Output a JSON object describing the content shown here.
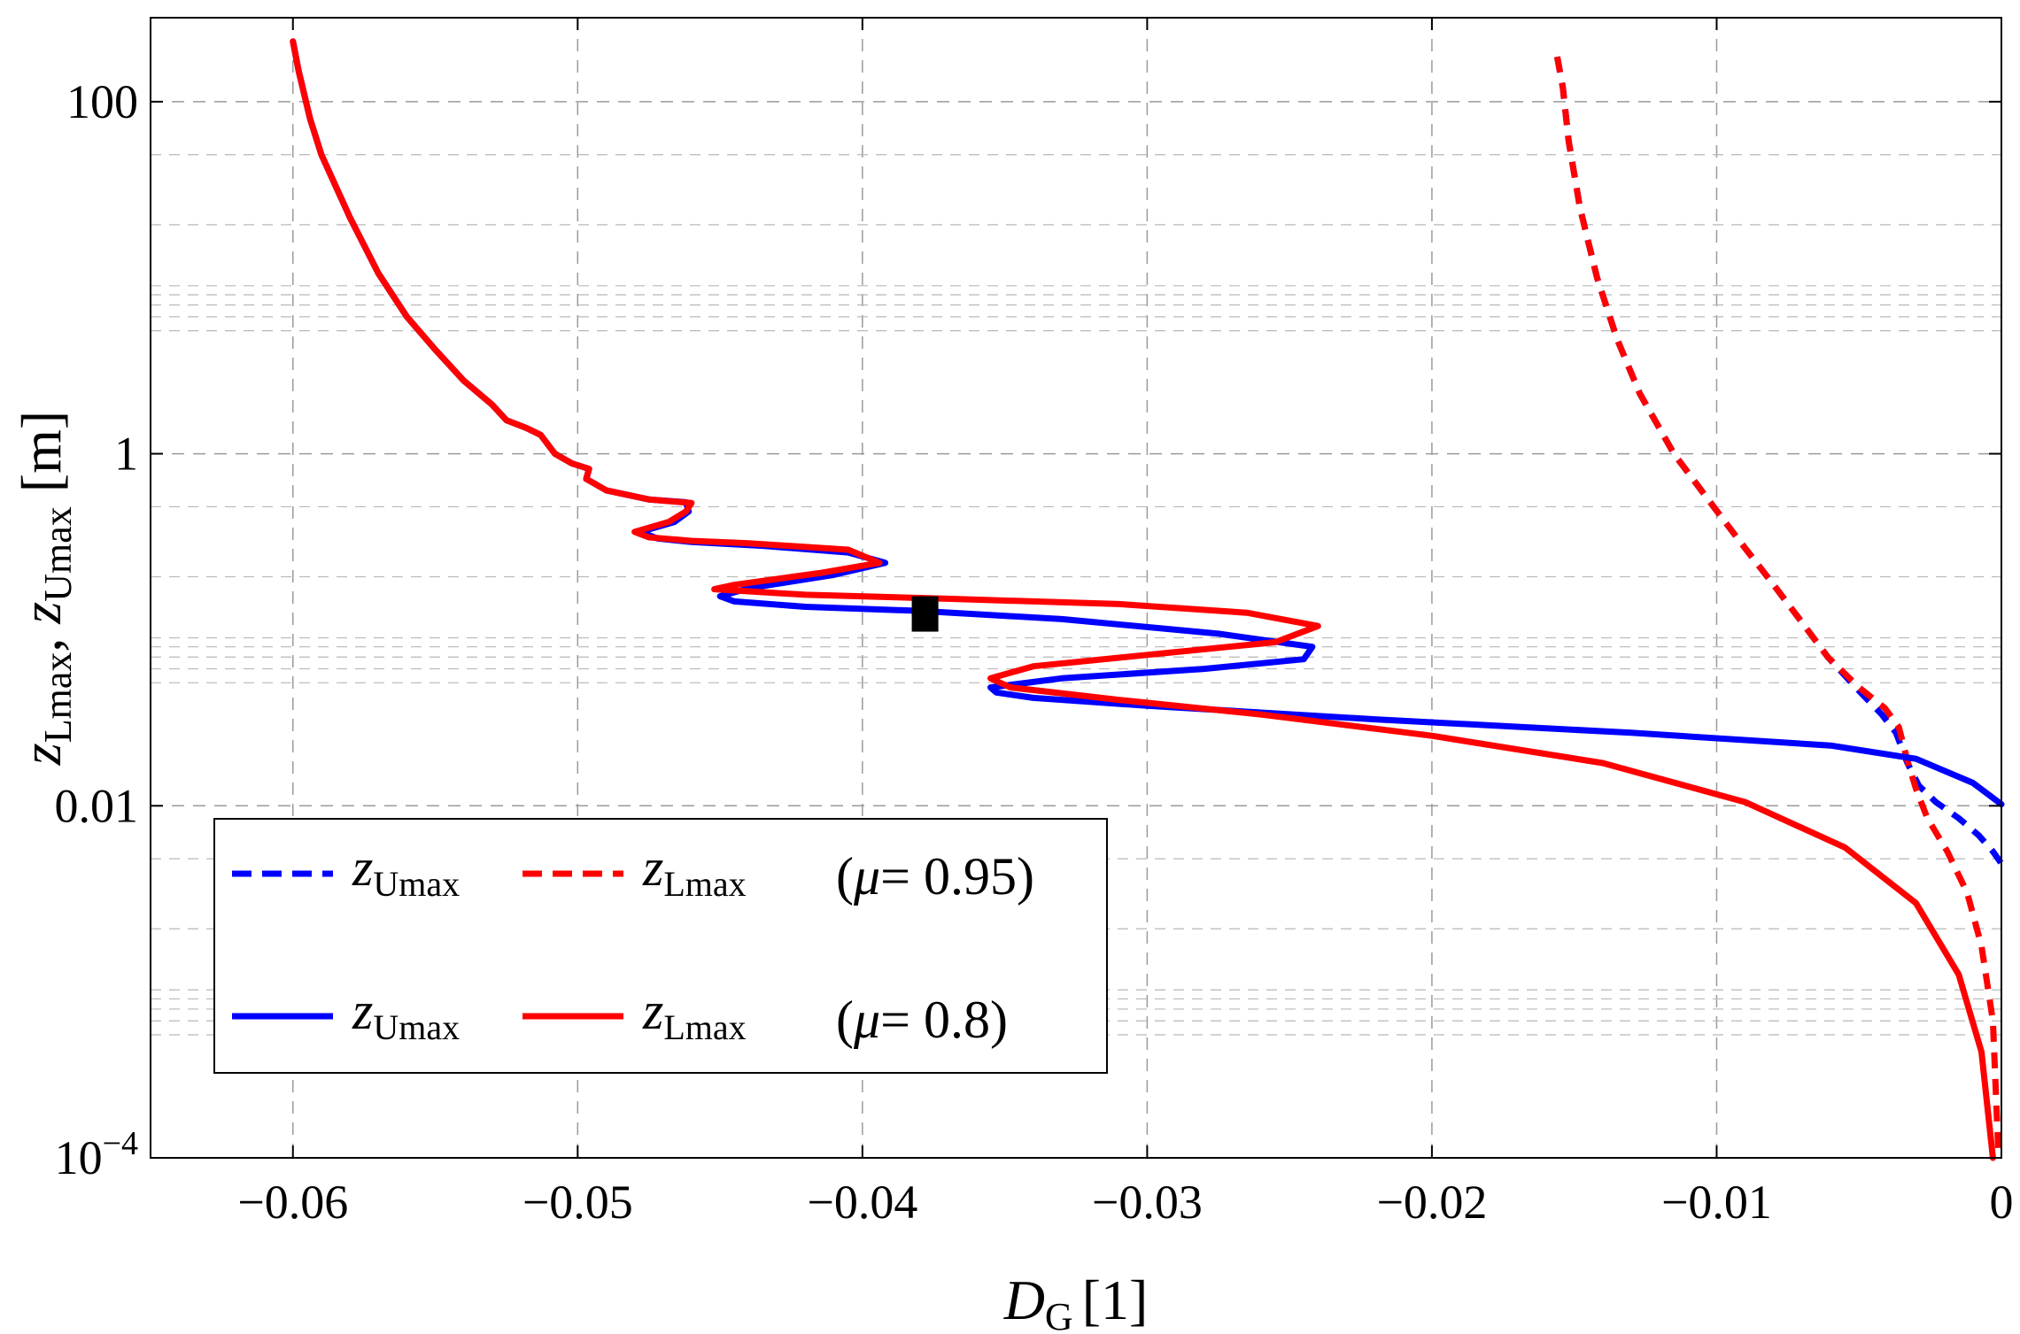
{
  "chart_data": {
    "type": "line",
    "title": "",
    "xlabel_main": "D",
    "xlabel_sub": "G",
    "xlabel_unit": "[1]",
    "ylabel_parts": [
      "z",
      "Lmax",
      ", ",
      "z",
      "Umax",
      " [m]"
    ],
    "xlim": [
      -0.065,
      0
    ],
    "ylim": [
      0.0001,
      300
    ],
    "yscale": "log",
    "grid": true,
    "x_ticks": [
      -0.06,
      -0.05,
      -0.04,
      -0.03,
      -0.02,
      -0.01,
      0
    ],
    "x_tick_labels": [
      "−0.06",
      "−0.05",
      "−0.04",
      "−0.03",
      "−0.02",
      "−0.01",
      "0"
    ],
    "y_ticks": [
      0.0001,
      0.01,
      1,
      100
    ],
    "y_tick_labels": [
      {
        "base": "10",
        "exp": "−4"
      },
      {
        "base": "0.01",
        "exp": ""
      },
      {
        "base": "1",
        "exp": ""
      },
      {
        "base": "100",
        "exp": ""
      }
    ],
    "series": [
      {
        "name": "z_Umax (μ=0.8)",
        "color": "#0000ff",
        "style": "solid",
        "points": [
          [
            -0.06,
            220
          ],
          [
            -0.0598,
            150
          ],
          [
            -0.0594,
            80
          ],
          [
            -0.059,
            50
          ],
          [
            -0.058,
            22
          ],
          [
            -0.057,
            10.6
          ],
          [
            -0.056,
            6
          ],
          [
            -0.055,
            3.9
          ],
          [
            -0.054,
            2.6
          ],
          [
            -0.053,
            1.9
          ],
          [
            -0.0525,
            1.55
          ],
          [
            -0.0518,
            1.4
          ],
          [
            -0.0513,
            1.28
          ],
          [
            -0.0508,
            1.0
          ],
          [
            -0.0502,
            0.88
          ],
          [
            -0.0496,
            0.82
          ],
          [
            -0.0497,
            0.72
          ],
          [
            -0.049,
            0.62
          ],
          [
            -0.0475,
            0.55
          ],
          [
            -0.0462,
            0.53
          ],
          [
            -0.0461,
            0.47
          ],
          [
            -0.0466,
            0.41
          ],
          [
            -0.0478,
            0.36
          ],
          [
            -0.0472,
            0.33
          ],
          [
            -0.046,
            0.315
          ],
          [
            -0.0435,
            0.3
          ],
          [
            -0.0405,
            0.275
          ],
          [
            -0.0392,
            0.24
          ],
          [
            -0.041,
            0.205
          ],
          [
            -0.044,
            0.172
          ],
          [
            -0.045,
            0.155
          ],
          [
            -0.0445,
            0.145
          ],
          [
            -0.042,
            0.135
          ],
          [
            -0.038,
            0.128
          ],
          [
            -0.033,
            0.115
          ],
          [
            -0.0275,
            0.095
          ],
          [
            -0.0242,
            0.08
          ],
          [
            -0.0245,
            0.068
          ],
          [
            -0.028,
            0.06
          ],
          [
            -0.033,
            0.053
          ],
          [
            -0.0355,
            0.047
          ],
          [
            -0.0353,
            0.044
          ],
          [
            -0.034,
            0.041
          ],
          [
            -0.03,
            0.037
          ],
          [
            -0.022,
            0.031
          ],
          [
            -0.013,
            0.026
          ],
          [
            -0.006,
            0.022
          ],
          [
            -0.003,
            0.0185
          ],
          [
            -0.001,
            0.0135
          ],
          [
            0,
            0.0102
          ]
        ]
      },
      {
        "name": "z_Lmax (μ=0.8)",
        "color": "#ff0000",
        "style": "solid",
        "points": [
          [
            -0.06,
            220
          ],
          [
            -0.0598,
            150
          ],
          [
            -0.0594,
            80
          ],
          [
            -0.059,
            50
          ],
          [
            -0.058,
            22
          ],
          [
            -0.057,
            10.6
          ],
          [
            -0.056,
            6
          ],
          [
            -0.055,
            3.9
          ],
          [
            -0.054,
            2.6
          ],
          [
            -0.053,
            1.9
          ],
          [
            -0.0525,
            1.55
          ],
          [
            -0.0518,
            1.4
          ],
          [
            -0.0513,
            1.28
          ],
          [
            -0.0508,
            1.0
          ],
          [
            -0.0502,
            0.88
          ],
          [
            -0.0496,
            0.82
          ],
          [
            -0.0497,
            0.72
          ],
          [
            -0.049,
            0.62
          ],
          [
            -0.0475,
            0.55
          ],
          [
            -0.046,
            0.525
          ],
          [
            -0.0462,
            0.47
          ],
          [
            -0.0468,
            0.41
          ],
          [
            -0.048,
            0.36
          ],
          [
            -0.0475,
            0.335
          ],
          [
            -0.046,
            0.32
          ],
          [
            -0.044,
            0.31
          ],
          [
            -0.0405,
            0.285
          ],
          [
            -0.0394,
            0.24
          ],
          [
            -0.0415,
            0.21
          ],
          [
            -0.0445,
            0.18
          ],
          [
            -0.0452,
            0.17
          ],
          [
            -0.042,
            0.158
          ],
          [
            -0.037,
            0.15
          ],
          [
            -0.031,
            0.14
          ],
          [
            -0.0265,
            0.125
          ],
          [
            -0.024,
            0.105
          ],
          [
            -0.0255,
            0.085
          ],
          [
            -0.03,
            0.072
          ],
          [
            -0.034,
            0.062
          ],
          [
            -0.0355,
            0.053
          ],
          [
            -0.0348,
            0.047
          ],
          [
            -0.031,
            0.04
          ],
          [
            -0.026,
            0.033
          ],
          [
            -0.02,
            0.025
          ],
          [
            -0.014,
            0.0175
          ],
          [
            -0.009,
            0.0105
          ],
          [
            -0.0055,
            0.0058
          ],
          [
            -0.003,
            0.0028
          ],
          [
            -0.0015,
            0.0011
          ],
          [
            -0.0007,
            0.0004
          ],
          [
            -0.0003,
            0.0001
          ]
        ]
      },
      {
        "name": "z_Umax (μ=0.95)",
        "color": "#0000ff",
        "style": "dashed",
        "points": [
          [
            -0.0156,
            180
          ],
          [
            -0.0154,
            120
          ],
          [
            -0.0152,
            60
          ],
          [
            -0.0148,
            25
          ],
          [
            -0.0142,
            10
          ],
          [
            -0.0135,
            4.5
          ],
          [
            -0.0127,
            2.2
          ],
          [
            -0.0115,
            1.0
          ],
          [
            -0.0103,
            0.55
          ],
          [
            -0.0092,
            0.32
          ],
          [
            -0.008,
            0.18
          ],
          [
            -0.007,
            0.11
          ],
          [
            -0.0061,
            0.07
          ],
          [
            -0.005,
            0.045
          ],
          [
            -0.0042,
            0.033
          ],
          [
            -0.0037,
            0.026
          ],
          [
            -0.0033,
            0.0175
          ],
          [
            -0.0029,
            0.013
          ],
          [
            -0.0023,
            0.0105
          ],
          [
            -0.0015,
            0.0085
          ],
          [
            -0.0008,
            0.0068
          ],
          [
            -0.0003,
            0.0055
          ],
          [
            0,
            0.0047
          ]
        ]
      },
      {
        "name": "z_Lmax (μ=0.95)",
        "color": "#ff0000",
        "style": "dashed",
        "points": [
          [
            -0.0156,
            180
          ],
          [
            -0.0154,
            120
          ],
          [
            -0.0152,
            60
          ],
          [
            -0.0148,
            25
          ],
          [
            -0.0142,
            10
          ],
          [
            -0.0135,
            4.5
          ],
          [
            -0.0127,
            2.2
          ],
          [
            -0.0115,
            1.0
          ],
          [
            -0.0103,
            0.55
          ],
          [
            -0.0092,
            0.32
          ],
          [
            -0.008,
            0.18
          ],
          [
            -0.007,
            0.11
          ],
          [
            -0.0061,
            0.07
          ],
          [
            -0.005,
            0.047
          ],
          [
            -0.0041,
            0.036
          ],
          [
            -0.0036,
            0.028
          ],
          [
            -0.0033,
            0.018
          ],
          [
            -0.003,
            0.0125
          ],
          [
            -0.0026,
            0.0085
          ],
          [
            -0.0019,
            0.0055
          ],
          [
            -0.0012,
            0.0032
          ],
          [
            -0.0007,
            0.0016
          ],
          [
            -0.0003,
            0.0006
          ],
          [
            -0.0001,
            0.0001
          ]
        ]
      }
    ],
    "marker": {
      "x": -0.0378,
      "y": 0.123,
      "shape": "square",
      "color": "#000000"
    },
    "legend": {
      "position": "bottom-left",
      "rows": [
        {
          "entries": [
            {
              "main": "z",
              "sub": "Umax",
              "color": "#0000ff",
              "style": "dashed"
            },
            {
              "main": "z",
              "sub": "Lmax",
              "color": "#ff0000",
              "style": "dashed"
            }
          ],
          "prefix": "(",
          "param": "μ",
          "equals": "= 0.95)"
        },
        {
          "entries": [
            {
              "main": "z",
              "sub": "Umax",
              "color": "#0000ff",
              "style": "solid"
            },
            {
              "main": "z",
              "sub": "Lmax",
              "color": "#ff0000",
              "style": "solid"
            }
          ],
          "prefix": "(",
          "param": "μ",
          "equals": "= 0.8)"
        }
      ]
    }
  }
}
